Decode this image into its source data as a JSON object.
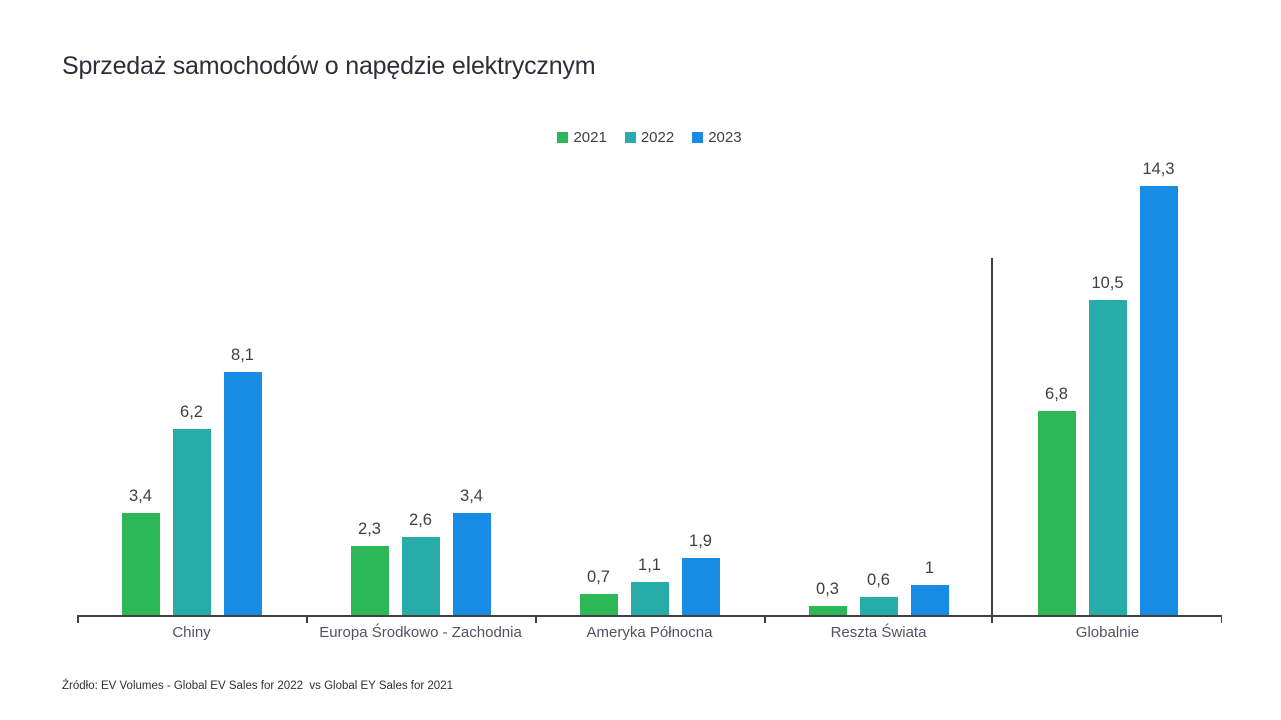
{
  "title": "Sprzedaż samochodów o napędzie elektrycznym",
  "source": "Źródło: EV Volumes - Global EV Sales for 2022  vs Global EY Sales for 2021",
  "legend": {
    "items": [
      "2021",
      "2022",
      "2023"
    ]
  },
  "colors": {
    "series_2021": "#2db757",
    "series_2022": "#27acaa",
    "series_2023": "#188ce5",
    "axis": "#404040",
    "title_text": "#2e2e38",
    "label_text": "#404040",
    "category_text": "#53535f"
  },
  "chart_data": {
    "type": "bar",
    "title": "Sprzedaż samochodów o napędzie elektrycznym",
    "categories": [
      "Chiny",
      "Europa Środkowo - Zachodnia",
      "Ameryka Północna",
      "Reszta Świata",
      "Globalnie"
    ],
    "series": [
      {
        "name": "2021",
        "color": "#2db757",
        "values": [
          3.4,
          2.3,
          0.7,
          0.3,
          6.8
        ],
        "labels": [
          "3,4",
          "2,3",
          "0,7",
          "0,3",
          "6,8"
        ]
      },
      {
        "name": "2022",
        "color": "#27acaa",
        "values": [
          6.2,
          2.6,
          1.1,
          0.6,
          10.5
        ],
        "labels": [
          "6,2",
          "2,6",
          "1,1",
          "0,6",
          "10,5"
        ]
      },
      {
        "name": "2023",
        "color": "#188ce5",
        "values": [
          8.1,
          3.4,
          1.9,
          1.0,
          14.3
        ],
        "labels": [
          "8,1",
          "3,4",
          "1,9",
          "1",
          "14,3"
        ]
      }
    ],
    "xlabel": "",
    "ylabel": "",
    "ylim": [
      0,
      15
    ],
    "grid": false,
    "legend_position": "top",
    "value_labels": true,
    "separator_before_category": "Globalnie",
    "source": "Źródło: EV Volumes - Global EV Sales for 2022  vs Global EY Sales for 2021"
  }
}
